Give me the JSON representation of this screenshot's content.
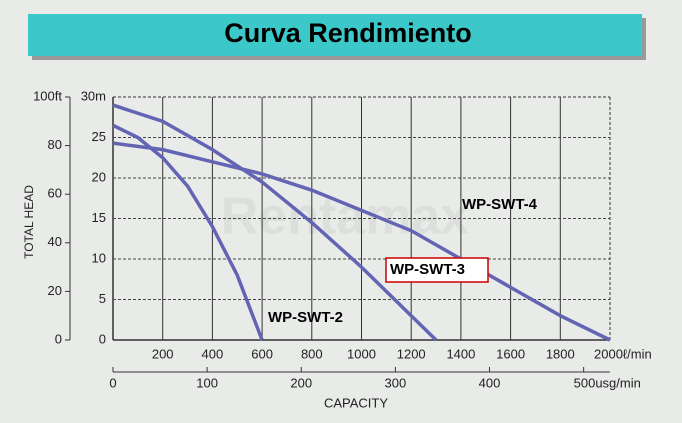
{
  "chart_data": {
    "type": "line",
    "title": "Curva Rendimiento",
    "watermark": "Rentamax",
    "y_label": "TOTAL HEAD",
    "x_label": "CAPACITY",
    "xlim": [
      0,
      2000
    ],
    "xticks": [
      200,
      400,
      600,
      800,
      1000,
      1200,
      1400,
      1600,
      1800,
      {
        "value": 2000,
        "label": "2000ℓ/min"
      }
    ],
    "x2lim": [
      0,
      528
    ],
    "x2ticks": [
      0,
      100,
      200,
      300,
      400,
      {
        "value": 500,
        "label": "500usg/min"
      }
    ],
    "ylim": [
      0,
      30
    ],
    "yticks": [
      0,
      5,
      10,
      15,
      20,
      25,
      {
        "value": 30,
        "label": "30m"
      }
    ],
    "y2lim": [
      0,
      100
    ],
    "y2ticks": [
      0,
      20,
      40,
      60,
      80,
      {
        "value": 100,
        "label": "100ft"
      }
    ],
    "grid": true,
    "series": [
      {
        "name": "WP-SWT-2",
        "color": "#6464b4",
        "x": [
          0,
          100,
          200,
          300,
          400,
          500,
          600
        ],
        "values": [
          26.5,
          25,
          22.5,
          19,
          14,
          8,
          0
        ]
      },
      {
        "name": "WP-SWT-3",
        "color": "#6464b4",
        "x": [
          0,
          200,
          400,
          600,
          800,
          1000,
          1200,
          1300
        ],
        "values": [
          29,
          27,
          23.5,
          19.5,
          14.5,
          9,
          3,
          0
        ]
      },
      {
        "name": "WP-SWT-4",
        "color": "#6464b4",
        "x": [
          0,
          200,
          400,
          600,
          800,
          1000,
          1200,
          1400,
          1600,
          1800,
          2000
        ],
        "values": [
          24.3,
          23.5,
          22,
          20.5,
          18.5,
          16,
          13.5,
          10,
          6.5,
          3,
          0
        ]
      }
    ]
  }
}
